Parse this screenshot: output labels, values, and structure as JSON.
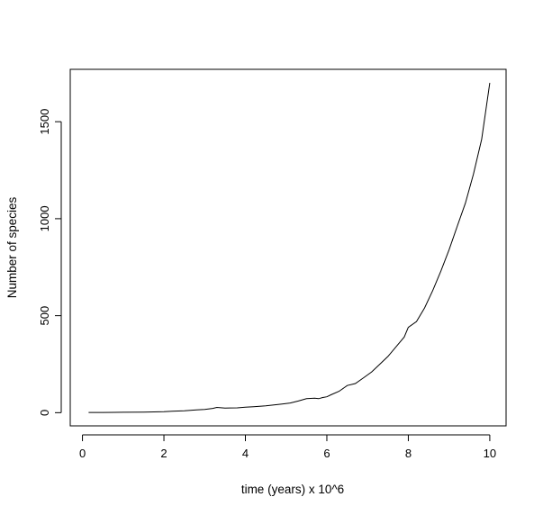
{
  "chart_data": {
    "type": "line",
    "title": "",
    "xlabel": "time (years) x 10^6",
    "ylabel": "Number of species",
    "xlim": [
      -0.3,
      10.4
    ],
    "ylim": [
      -68,
      1770
    ],
    "xticks": [
      0,
      2,
      4,
      6,
      8,
      10
    ],
    "yticks": [
      0,
      500,
      1000,
      1500
    ],
    "grid": false,
    "legend": "none",
    "colors": {
      "line": "#000000",
      "axis": "#000000",
      "background": "#ffffff"
    },
    "series": [
      {
        "x": [
          0.15,
          0.5,
          1.0,
          1.5,
          2.0,
          2.2,
          2.5,
          2.8,
          3.0,
          3.2,
          3.3,
          3.5,
          3.8,
          4.0,
          4.2,
          4.5,
          4.7,
          4.9,
          5.1,
          5.3,
          5.5,
          5.7,
          5.8,
          5.9,
          6.0,
          6.1,
          6.3,
          6.5,
          6.7,
          6.9,
          7.1,
          7.3,
          7.5,
          7.7,
          7.9,
          8.0,
          8.2,
          8.4,
          8.6,
          8.8,
          9.0,
          9.2,
          9.4,
          9.6,
          9.8,
          10.0
        ],
        "y": [
          1,
          1,
          2,
          3,
          5,
          7,
          10,
          14,
          17,
          22,
          27,
          24,
          25,
          28,
          31,
          35,
          40,
          45,
          50,
          60,
          72,
          75,
          72,
          78,
          82,
          92,
          110,
          140,
          150,
          180,
          210,
          250,
          290,
          340,
          390,
          440,
          470,
          540,
          630,
          730,
          840,
          960,
          1080,
          1230,
          1410,
          1700
        ]
      }
    ]
  }
}
